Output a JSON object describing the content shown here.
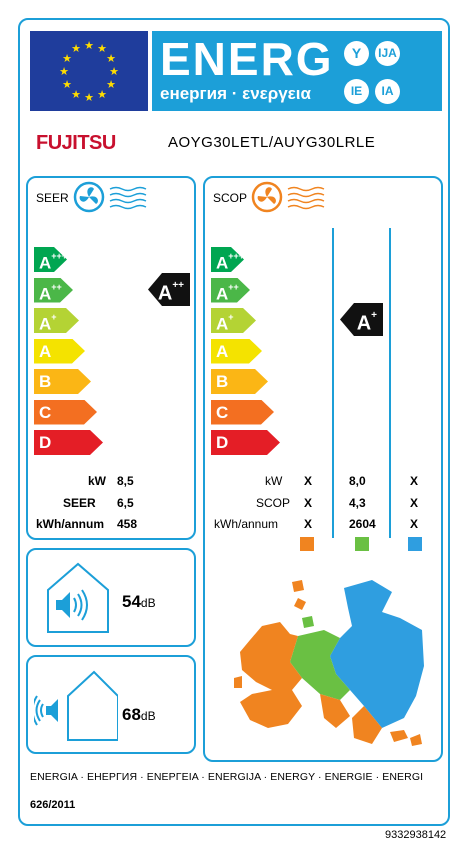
{
  "header": {
    "energ_title": "ENERG",
    "energ_subtitle": "енергия · ενεργεια",
    "lang_suffixes": [
      "Y",
      "IJA",
      "IE",
      "IA"
    ],
    "brand": "FUJITSU",
    "model": "AOYG30LETL/AUYG30LRLE"
  },
  "colors": {
    "label_blue": "#1c9fd8",
    "eu_blue": "#1f3d9c",
    "brand_red": "#c8102e",
    "warm_orange": "#f08420",
    "average_green": "#6ac043",
    "cold_blue": "#2f9ee0"
  },
  "icons": {
    "seer_icon": "fan-cooling-icon",
    "scop_icon": "fan-heating-icon",
    "indoor_noise_icon": "speaker-indoor-icon",
    "outdoor_noise_icon": "speaker-outdoor-icon",
    "climate_map": "europe-climate-map"
  },
  "scale_classes": [
    {
      "letter": "A",
      "sup": "+++",
      "color": "#00a651"
    },
    {
      "letter": "A",
      "sup": "++",
      "color": "#4bb748"
    },
    {
      "letter": "A",
      "sup": "+",
      "color": "#b4d334"
    },
    {
      "letter": "A",
      "sup": "",
      "color": "#f4e300"
    },
    {
      "letter": "B",
      "sup": "",
      "color": "#fbb615"
    },
    {
      "letter": "C",
      "sup": "",
      "color": "#f36f21"
    },
    {
      "letter": "D",
      "sup": "",
      "color": "#e41e26"
    }
  ],
  "cooling": {
    "title": "SEER",
    "rating_letter": "A",
    "rating_sup": "++",
    "rows": [
      {
        "label": "kW",
        "value": "8,5"
      },
      {
        "label": "SEER",
        "value": "6,5"
      },
      {
        "label": "kWh/annum",
        "value": "458"
      }
    ]
  },
  "heating": {
    "title": "SCOP",
    "rating_letter": "A",
    "rating_sup": "+",
    "rows": [
      {
        "label": "kW",
        "warmer": "X",
        "average": "8,0",
        "colder": "X"
      },
      {
        "label": "SCOP",
        "warmer": "X",
        "average": "4,3",
        "colder": "X"
      },
      {
        "label": "kWh/annum",
        "warmer": "X",
        "average": "2604",
        "colder": "X"
      }
    ]
  },
  "noise": {
    "indoor_value": "54",
    "outdoor_value": "68",
    "unit": "dB"
  },
  "footer": {
    "energy_words": "ENERGIA · ЕНЕРГИЯ · ΕΝΕΡΓΕΙΑ · ENERGIJA · ENERGY · ENERGIE · ENERGI",
    "regulation": "626/2011",
    "label_code": "9332938142"
  }
}
